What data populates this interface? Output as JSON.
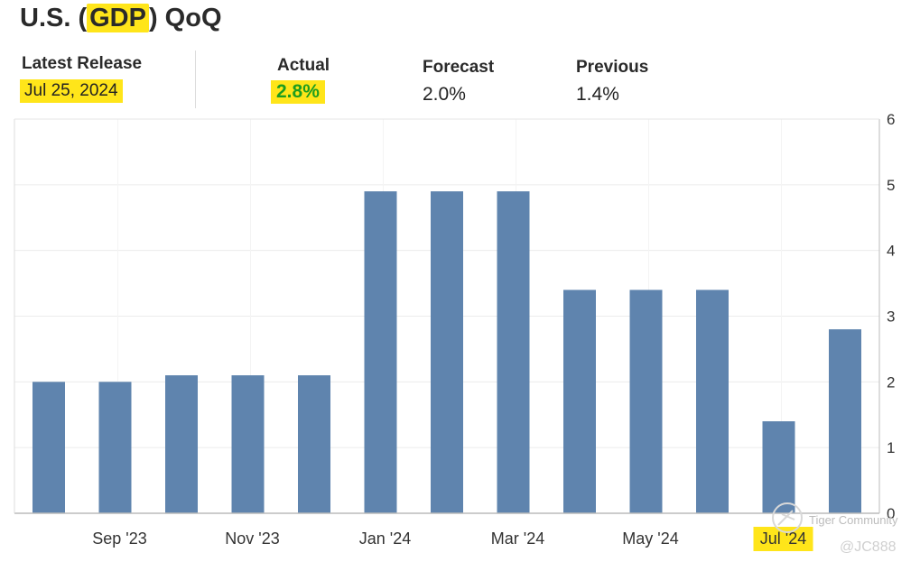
{
  "header": {
    "title_prefix": "U.S. (",
    "title_highlight": "GDP",
    "title_suffix": ") QoQ"
  },
  "stats": {
    "latest_release_label": "Latest Release",
    "latest_release_value": "Jul 25, 2024",
    "actual_label": "Actual",
    "actual_value": "2.8%",
    "forecast_label": "Forecast",
    "forecast_value": "2.0%",
    "previous_label": "Previous",
    "previous_value": "1.4%"
  },
  "colors": {
    "bar": "#5f84ae",
    "highlight": "#ffe51a",
    "actual_text": "#1e9d1e",
    "grid": "#ececec",
    "axis": "#bbbbbb"
  },
  "chart_data": {
    "type": "bar",
    "x_tick_labels": [
      "Sep '23",
      "Nov '23",
      "Jan '24",
      "Mar '24",
      "May '24",
      "Jul '24"
    ],
    "highlighted_tick": "Jul '24",
    "values": [
      2.0,
      2.0,
      2.1,
      2.1,
      2.1,
      4.9,
      4.9,
      4.9,
      3.4,
      3.4,
      3.4,
      1.4,
      2.8
    ],
    "y_ticks": [
      0,
      1,
      2,
      3,
      4,
      5,
      6
    ],
    "ylim": [
      0,
      6
    ],
    "y_axis_side": "right",
    "grid": true,
    "title": "U.S. (GDP) QoQ"
  },
  "watermark": {
    "brand": "Tiger Community",
    "handle": "@JC888"
  }
}
